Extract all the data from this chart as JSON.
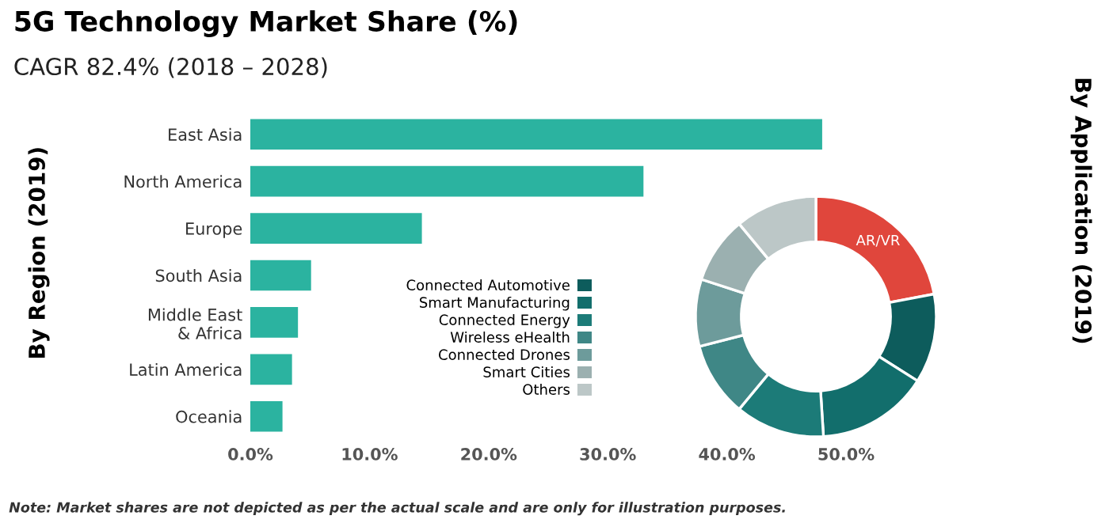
{
  "chart_data": [
    {
      "type": "bar",
      "orientation": "horizontal",
      "title": "5G Technology Market Share (%)",
      "subtitle": "CAGR 82.4% (2018 – 2028)",
      "ylabel": "By Region (2019)",
      "categories": [
        "East Asia",
        "North America",
        "Europe",
        "South Asia",
        "Middle East\n& Africa",
        "Latin America",
        "Oceania"
      ],
      "values": [
        48,
        33,
        14.4,
        5.1,
        4.0,
        3.5,
        2.7
      ],
      "color": "#2bb3a0",
      "xlim": [
        0,
        50
      ],
      "xticks": [
        {
          "value": 0,
          "label": "0.0%"
        },
        {
          "value": 10,
          "label": "10.0%"
        },
        {
          "value": 20,
          "label": "20.0%"
        },
        {
          "value": 30,
          "label": "30.0%"
        },
        {
          "value": 40,
          "label": "40.0%"
        },
        {
          "value": 50,
          "label": "50.0%"
        }
      ],
      "annotations": [
        "Note: Market shares are not depicted as per the actual scale and are only for illustration purposes."
      ]
    },
    {
      "type": "donut",
      "ylabel": "By Application (2019)",
      "categories": [
        null,
        "Connected Automotive",
        "Smart Manufacturing",
        "Connected Energy",
        "Wireless eHealth",
        "Connected Drones",
        "Smart Cities",
        "Others"
      ],
      "values": [
        22,
        12,
        15,
        12,
        10,
        9,
        9,
        11
      ],
      "colors": [
        "#e0463c",
        "#0d5c5c",
        "#126e6c",
        "#1c7b78",
        "#3f8786",
        "#6d9b9b",
        "#9bb0b0",
        "#bcc7c7"
      ],
      "legend": "left",
      "annotations": [
        "AR/VR"
      ]
    }
  ]
}
